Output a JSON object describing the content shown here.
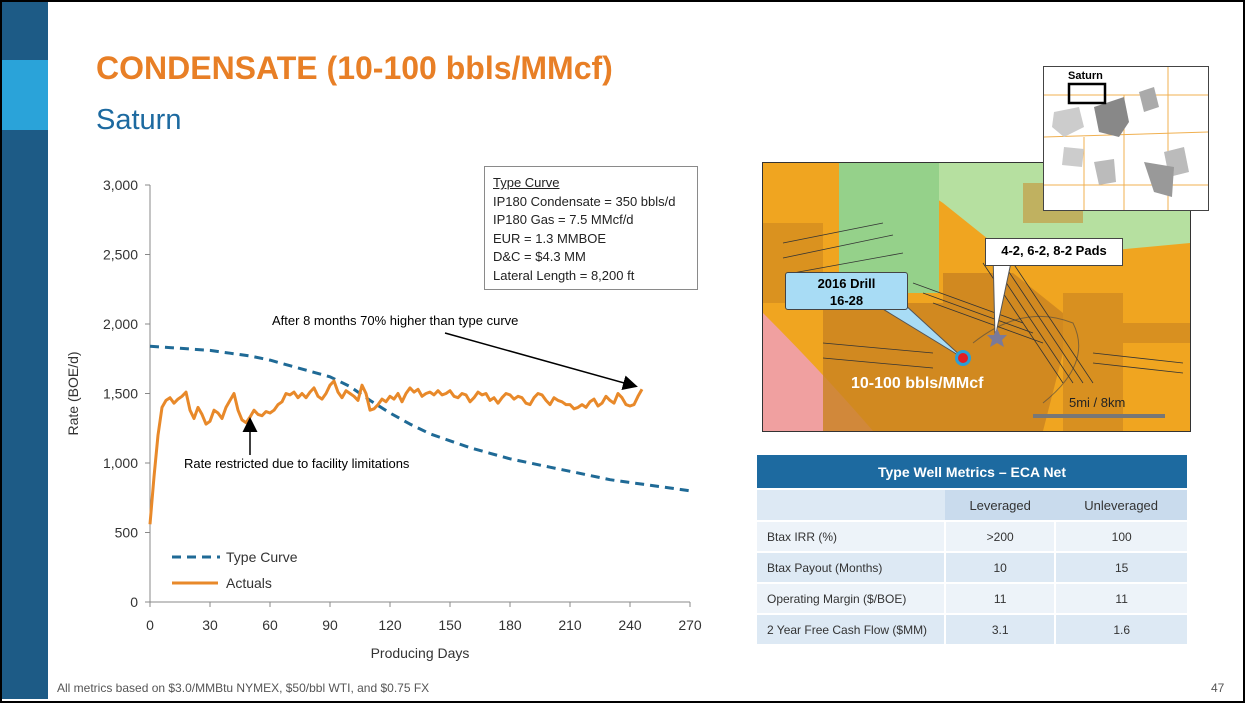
{
  "slide": {
    "title": "CONDENSATE (10-100 bbls/MMcf)",
    "subtitle": "Saturn",
    "footer": "All metrics based on $3.0/MMBtu NYMEX, $50/bbl WTI, and $0.75 FX",
    "page_number": "47"
  },
  "colors": {
    "accent_orange": "#e87f26",
    "brand_blue": "#1d6aa0",
    "type_curve": "#1f6a96",
    "actuals": "#e8892a"
  },
  "type_curve_box": {
    "heading": "Type Curve",
    "lines": [
      "IP180 Condensate = 350 bbls/d",
      "IP180 Gas = 7.5 MMcf/d",
      "EUR = 1.3 MMBOE",
      "D&C = $4.3 MM",
      "Lateral Length = 8,200 ft"
    ]
  },
  "annotations": {
    "higher": "After 8 months 70% higher than type curve",
    "restricted": "Rate restricted due to facility limitations"
  },
  "chart_data": {
    "type": "line",
    "xlabel": "Producing Days",
    "ylabel": "Rate (BOE/d)",
    "xlim": [
      0,
      270
    ],
    "ylim": [
      0,
      3000
    ],
    "xticks": [
      0,
      30,
      60,
      90,
      120,
      150,
      180,
      210,
      240,
      270
    ],
    "yticks": [
      0,
      500,
      1000,
      1500,
      2000,
      2500,
      3000
    ],
    "ytick_labels": [
      "0",
      "500",
      "1,000",
      "1,500",
      "2,000",
      "2,500",
      "3,000"
    ],
    "legend_position": "bottom-left",
    "series": [
      {
        "name": "Type Curve",
        "style": "dashed",
        "x": [
          0,
          10,
          20,
          30,
          40,
          50,
          60,
          70,
          80,
          90,
          100,
          110,
          120,
          130,
          140,
          150,
          160,
          170,
          180,
          190,
          200,
          210,
          220,
          230,
          240,
          250,
          260,
          270
        ],
        "y": [
          1840,
          1830,
          1820,
          1810,
          1790,
          1770,
          1740,
          1700,
          1660,
          1620,
          1550,
          1450,
          1360,
          1280,
          1210,
          1160,
          1110,
          1070,
          1030,
          1000,
          970,
          940,
          910,
          880,
          860,
          840,
          820,
          800
        ]
      },
      {
        "name": "Actuals",
        "style": "solid",
        "x": [
          0,
          2,
          4,
          6,
          8,
          10,
          12,
          14,
          16,
          18,
          20,
          22,
          24,
          26,
          28,
          30,
          32,
          34,
          36,
          38,
          40,
          42,
          44,
          46,
          48,
          50,
          52,
          54,
          56,
          58,
          60,
          62,
          64,
          66,
          68,
          70,
          72,
          74,
          76,
          78,
          80,
          82,
          84,
          86,
          88,
          90,
          92,
          94,
          96,
          98,
          100,
          102,
          104,
          106,
          108,
          110,
          112,
          114,
          116,
          118,
          120,
          122,
          124,
          126,
          128,
          130,
          132,
          134,
          136,
          138,
          140,
          142,
          144,
          146,
          148,
          150,
          152,
          154,
          156,
          158,
          160,
          162,
          164,
          166,
          168,
          170,
          172,
          174,
          176,
          178,
          180,
          182,
          184,
          186,
          188,
          190,
          192,
          194,
          196,
          198,
          200,
          202,
          204,
          206,
          208,
          210,
          212,
          214,
          216,
          218,
          220,
          222,
          224,
          226,
          228,
          230,
          232,
          234,
          236,
          238,
          240,
          242,
          244,
          246
        ],
        "y": [
          560,
          900,
          1200,
          1400,
          1450,
          1470,
          1430,
          1460,
          1480,
          1510,
          1380,
          1320,
          1400,
          1350,
          1280,
          1300,
          1380,
          1360,
          1320,
          1400,
          1450,
          1500,
          1380,
          1310,
          1290,
          1330,
          1380,
          1350,
          1340,
          1370,
          1360,
          1380,
          1420,
          1440,
          1500,
          1490,
          1510,
          1470,
          1500,
          1470,
          1510,
          1540,
          1480,
          1460,
          1500,
          1560,
          1590,
          1510,
          1470,
          1520,
          1500,
          1480,
          1450,
          1560,
          1500,
          1380,
          1390,
          1420,
          1460,
          1440,
          1480,
          1460,
          1500,
          1440,
          1500,
          1540,
          1510,
          1530,
          1480,
          1500,
          1510,
          1490,
          1520,
          1490,
          1500,
          1520,
          1480,
          1470,
          1500,
          1490,
          1440,
          1470,
          1510,
          1490,
          1500,
          1450,
          1470,
          1430,
          1470,
          1500,
          1490,
          1460,
          1480,
          1470,
          1430,
          1420,
          1470,
          1500,
          1490,
          1450,
          1420,
          1470,
          1450,
          1440,
          1420,
          1420,
          1390,
          1400,
          1420,
          1400,
          1440,
          1460,
          1410,
          1430,
          1480,
          1450,
          1430,
          1500,
          1470,
          1420,
          1410,
          1420,
          1480,
          1530
        ]
      }
    ]
  },
  "map": {
    "callout_drill_line1": "2016 Drill",
    "callout_drill_line2": "16-28",
    "callout_pads": "4-2, 6-2, 8-2 Pads",
    "zone_label": "10-100 bbls/MMcf",
    "scale_label": "5mi / 8km",
    "inset_label": "Saturn"
  },
  "metrics_table": {
    "title": "Type Well Metrics – ECA Net",
    "columns": [
      "Leveraged",
      "Unleveraged"
    ],
    "rows": [
      {
        "label": "Btax IRR (%)",
        "leveraged": ">200",
        "unleveraged": "100"
      },
      {
        "label": "Btax Payout (Months)",
        "leveraged": "10",
        "unleveraged": "15"
      },
      {
        "label": "Operating Margin ($/BOE)",
        "leveraged": "11",
        "unleveraged": "11"
      },
      {
        "label": "2 Year Free Cash Flow ($MM)",
        "leveraged": "3.1",
        "unleveraged": "1.6"
      }
    ]
  }
}
